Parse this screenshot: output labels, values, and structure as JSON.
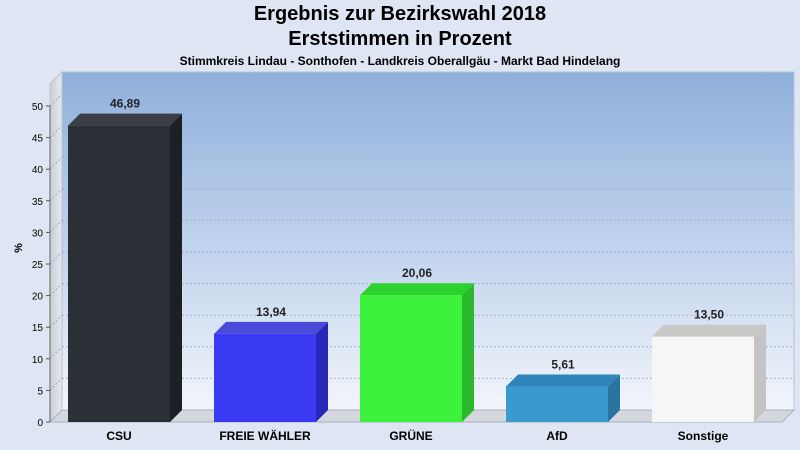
{
  "chart_data": {
    "type": "bar",
    "title": "Ergebnis zur Bezirkswahl 2018",
    "subtitle_line": "Erststimmen in Prozent",
    "caption": "Stimmkreis Lindau - Sonthofen - Landkreis Oberallgäu - Markt Bad Hindelang",
    "ylabel": "%",
    "xlabel": "",
    "ylim": [
      0,
      50
    ],
    "yticks": [
      0,
      5,
      10,
      15,
      20,
      25,
      30,
      35,
      40,
      45,
      50
    ],
    "grid": true,
    "categories": [
      "CSU",
      "FREIE WÄHLER",
      "GRÜNE",
      "AfD",
      "Sonstige"
    ],
    "values": [
      46.89,
      13.94,
      20.06,
      5.61,
      13.5
    ],
    "value_labels": [
      "46,89",
      "13,94",
      "20,06",
      "5,61",
      "13,50"
    ],
    "colors": [
      "#2b2f36",
      "#3a3af2",
      "#3cf23c",
      "#3a9ad0",
      "#f6f6f6"
    ],
    "side_colors": [
      "#1c1f24",
      "#2828b8",
      "#2cb82c",
      "#2a74a0",
      "#c4c4c4"
    ],
    "top_colors": [
      "#3a3e46",
      "#4a4ad8",
      "#2ed22e",
      "#2f84b8",
      "#c8c8c8"
    ]
  }
}
